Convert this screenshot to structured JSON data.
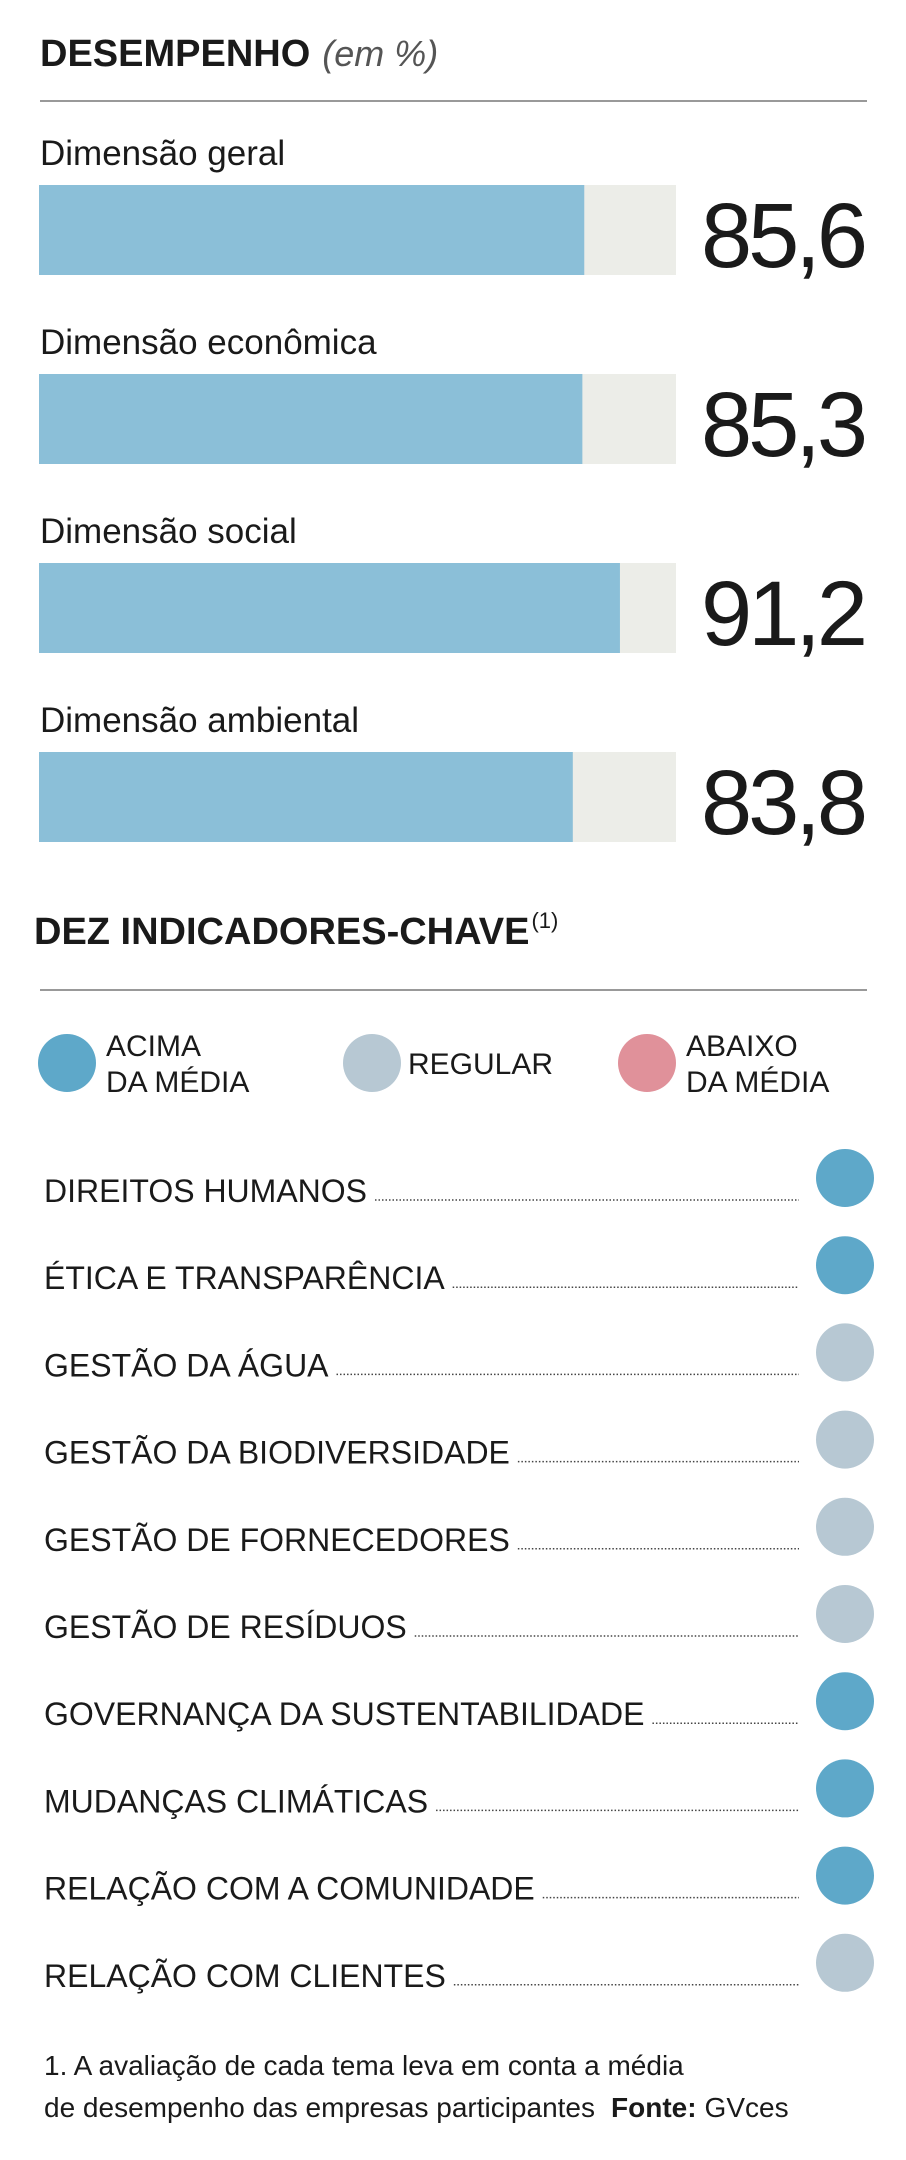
{
  "chart_data": {
    "type": "bar",
    "orientation": "horizontal",
    "title": "DESEMPENHO",
    "subtitle": "(em %)",
    "categories": [
      "Dimensão geral",
      "Dimensão econômica",
      "Dimensão social",
      "Dimensão ambiental"
    ],
    "values": [
      85.6,
      85.3,
      91.2,
      83.8
    ],
    "value_labels": [
      "85,6",
      "85,3",
      "91,2",
      "83,8"
    ],
    "xlim": [
      0,
      100
    ],
    "color": "#8bbfd8",
    "track_color": "#ecede8"
  },
  "indicators": {
    "title": "DEZ INDICADORES-CHAVE",
    "note_ref": "(1)",
    "legend": [
      {
        "lines": [
          "ACIMA",
          "DA MÉDIA"
        ],
        "color": "#5ea8c9"
      },
      {
        "lines": [
          "REGULAR"
        ],
        "color": "#b7c8d3"
      },
      {
        "lines": [
          "ABAIXO",
          "DA MÉDIA"
        ],
        "color": "#e0919a"
      }
    ],
    "items": [
      {
        "label": "DIREITOS HUMANOS",
        "color": "#5ea8c9"
      },
      {
        "label": "ÉTICA E TRANSPARÊNCIA",
        "color": "#5ea8c9"
      },
      {
        "label": "GESTÃO DA ÁGUA",
        "color": "#b7c8d3"
      },
      {
        "label": "GESTÃO DA BIODIVERSIDADE",
        "color": "#b7c8d3"
      },
      {
        "label": "GESTÃO DE FORNECEDORES",
        "color": "#b7c8d3"
      },
      {
        "label": "GESTÃO DE RESÍDUOS",
        "color": "#b7c8d3"
      },
      {
        "label": "GOVERNANÇA DA SUSTENTABILIDADE",
        "color": "#5ea8c9"
      },
      {
        "label": "MUDANÇAS CLIMÁTICAS",
        "color": "#5ea8c9"
      },
      {
        "label": "RELAÇÃO COM A COMUNIDADE",
        "color": "#5ea8c9"
      },
      {
        "label": "RELAÇÃO COM CLIENTES",
        "color": "#b7c8d3"
      }
    ]
  },
  "footnote": {
    "lines": [
      "1. A avaliação de cada tema leva em conta a média",
      "de desempenho das empresas participantes"
    ],
    "source_label": "Fonte:",
    "source": "GVces"
  }
}
